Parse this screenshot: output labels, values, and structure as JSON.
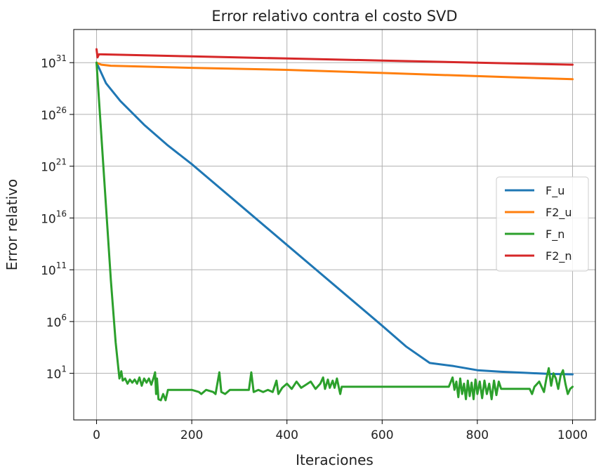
{
  "chart_data": {
    "type": "line",
    "title": "Error relativo contra el costo SVD",
    "xlabel": "Iteraciones",
    "ylabel": "Error relativo",
    "xlim": [
      -48,
      1048
    ],
    "ylim_log10": [
      -3.5,
      34.2
    ],
    "yscale": "log",
    "grid": true,
    "legend": {
      "placement": "center-right"
    },
    "x_ticks": [
      {
        "value": 0,
        "label": "0"
      },
      {
        "value": 200,
        "label": "200"
      },
      {
        "value": 400,
        "label": "400"
      },
      {
        "value": 600,
        "label": "600"
      },
      {
        "value": 800,
        "label": "800"
      },
      {
        "value": 1000,
        "label": "1000"
      }
    ],
    "y_ticks": [
      {
        "exp": 1,
        "base": "10",
        "sup": "1"
      },
      {
        "exp": 6,
        "base": "10",
        "sup": "6"
      },
      {
        "exp": 11,
        "base": "10",
        "sup": "11"
      },
      {
        "exp": 16,
        "base": "10",
        "sup": "16"
      },
      {
        "exp": 21,
        "base": "10",
        "sup": "21"
      },
      {
        "exp": 26,
        "base": "10",
        "sup": "26"
      },
      {
        "exp": 31,
        "base": "10",
        "sup": "31"
      }
    ],
    "series": [
      {
        "name": "F_u",
        "color": "#1f77b4",
        "points": [
          [
            0,
            31.0
          ],
          [
            20,
            29.0
          ],
          [
            50,
            27.3
          ],
          [
            100,
            25.0
          ],
          [
            150,
            23.0
          ],
          [
            200,
            21.2
          ],
          [
            300,
            17.3
          ],
          [
            400,
            13.4
          ],
          [
            500,
            9.5
          ],
          [
            600,
            5.6
          ],
          [
            650,
            3.6
          ],
          [
            700,
            2.0
          ],
          [
            750,
            1.7
          ],
          [
            800,
            1.3
          ],
          [
            850,
            1.15
          ],
          [
            900,
            1.05
          ],
          [
            950,
            0.95
          ],
          [
            1000,
            0.9
          ]
        ]
      },
      {
        "name": "F2_u",
        "color": "#ff7f0e",
        "points": [
          [
            0,
            31.0
          ],
          [
            10,
            30.8
          ],
          [
            30,
            30.7
          ],
          [
            200,
            30.5
          ],
          [
            400,
            30.3
          ],
          [
            600,
            30.0
          ],
          [
            800,
            29.7
          ],
          [
            1000,
            29.4
          ]
        ]
      },
      {
        "name": "F_n",
        "color": "#2ca02c",
        "points": [
          [
            0,
            31.0
          ],
          [
            10,
            24.0
          ],
          [
            20,
            17.0
          ],
          [
            30,
            10.0
          ],
          [
            40,
            4.0
          ],
          [
            48,
            0.5
          ],
          [
            52,
            1.2
          ],
          [
            55,
            0.3
          ],
          [
            60,
            0.5
          ],
          [
            65,
            0.0
          ],
          [
            70,
            0.4
          ],
          [
            75,
            0.1
          ],
          [
            80,
            0.4
          ],
          [
            85,
            0.0
          ],
          [
            90,
            0.6
          ],
          [
            95,
            -0.2
          ],
          [
            100,
            0.5
          ],
          [
            105,
            0.1
          ],
          [
            110,
            0.5
          ],
          [
            115,
            -0.1
          ],
          [
            120,
            0.6
          ],
          [
            123,
            1.1
          ],
          [
            125,
            -1.0
          ],
          [
            127,
            0.5
          ],
          [
            130,
            -1.5
          ],
          [
            135,
            -1.6
          ],
          [
            140,
            -1.0
          ],
          [
            145,
            -1.6
          ],
          [
            150,
            -0.6
          ],
          [
            200,
            -0.6
          ],
          [
            215,
            -0.8
          ],
          [
            220,
            -1.0
          ],
          [
            230,
            -0.6
          ],
          [
            245,
            -0.8
          ],
          [
            250,
            -1.0
          ],
          [
            258,
            1.1
          ],
          [
            262,
            -0.8
          ],
          [
            270,
            -1.0
          ],
          [
            280,
            -0.6
          ],
          [
            320,
            -0.6
          ],
          [
            325,
            1.1
          ],
          [
            330,
            -0.8
          ],
          [
            340,
            -0.6
          ],
          [
            350,
            -0.8
          ],
          [
            360,
            -0.6
          ],
          [
            370,
            -0.8
          ],
          [
            378,
            0.3
          ],
          [
            382,
            -1.0
          ],
          [
            390,
            -0.4
          ],
          [
            400,
            0.0
          ],
          [
            410,
            -0.5
          ],
          [
            420,
            0.2
          ],
          [
            430,
            -0.4
          ],
          [
            440,
            -0.1
          ],
          [
            450,
            0.2
          ],
          [
            460,
            -0.5
          ],
          [
            470,
            0.0
          ],
          [
            476,
            0.6
          ],
          [
            480,
            -0.5
          ],
          [
            486,
            0.4
          ],
          [
            490,
            -0.4
          ],
          [
            496,
            0.3
          ],
          [
            500,
            -0.4
          ],
          [
            505,
            0.5
          ],
          [
            510,
            -0.6
          ],
          [
            512,
            -1.0
          ],
          [
            515,
            -0.3
          ],
          [
            600,
            -0.3
          ],
          [
            700,
            -0.3
          ],
          [
            740,
            -0.3
          ],
          [
            748,
            0.6
          ],
          [
            752,
            -0.6
          ],
          [
            756,
            0.2
          ],
          [
            760,
            -1.3
          ],
          [
            764,
            0.5
          ],
          [
            768,
            -1.0
          ],
          [
            772,
            0.0
          ],
          [
            776,
            -1.5
          ],
          [
            780,
            0.3
          ],
          [
            784,
            -1.2
          ],
          [
            788,
            0.1
          ],
          [
            792,
            -1.5
          ],
          [
            796,
            0.4
          ],
          [
            800,
            -1.0
          ],
          [
            805,
            0.2
          ],
          [
            810,
            -1.4
          ],
          [
            815,
            0.3
          ],
          [
            820,
            -1.0
          ],
          [
            825,
            0.0
          ],
          [
            830,
            -1.5
          ],
          [
            835,
            0.3
          ],
          [
            840,
            -1.1
          ],
          [
            845,
            0.2
          ],
          [
            850,
            -0.5
          ],
          [
            900,
            -0.5
          ],
          [
            910,
            -0.5
          ],
          [
            915,
            -1.0
          ],
          [
            920,
            -0.3
          ],
          [
            930,
            0.2
          ],
          [
            940,
            -0.8
          ],
          [
            945,
            0.5
          ],
          [
            950,
            1.5
          ],
          [
            955,
            -0.2
          ],
          [
            960,
            1.0
          ],
          [
            965,
            0.5
          ],
          [
            970,
            -0.5
          ],
          [
            975,
            0.8
          ],
          [
            980,
            1.3
          ],
          [
            985,
            0.0
          ],
          [
            990,
            -1.0
          ],
          [
            995,
            -0.5
          ],
          [
            1000,
            -0.3
          ]
        ]
      },
      {
        "name": "F2_n",
        "color": "#d62728",
        "points": [
          [
            0,
            32.3
          ],
          [
            2,
            31.5
          ],
          [
            5,
            31.8
          ],
          [
            10,
            31.8
          ],
          [
            200,
            31.6
          ],
          [
            400,
            31.4
          ],
          [
            600,
            31.2
          ],
          [
            800,
            31.0
          ],
          [
            1000,
            30.8
          ]
        ]
      }
    ]
  }
}
